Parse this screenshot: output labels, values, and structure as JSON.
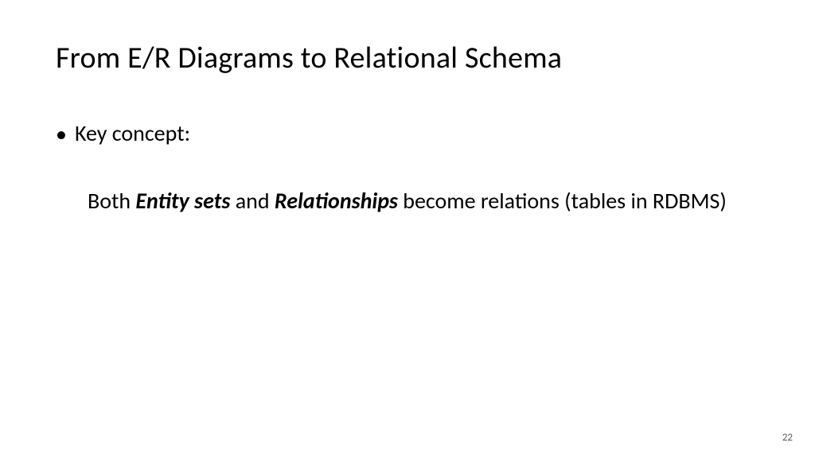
{
  "title": "From E/R Diagrams to Relational Schema",
  "bullet": {
    "marker": "•",
    "label": "Key concept:"
  },
  "body": {
    "part1": "Both ",
    "emph1": "Entity sets",
    "part2": " and ",
    "emph2": "Relationships",
    "part3": " become relations (tables in RDBMS)"
  },
  "pageNumber": "22",
  "styling": {
    "background_color": "#ffffff",
    "text_color": "#000000",
    "title_fontsize": 38,
    "body_fontsize": 28,
    "pagenum_fontsize": 13,
    "pagenum_color": "#595959",
    "font_family": "Calibri"
  }
}
